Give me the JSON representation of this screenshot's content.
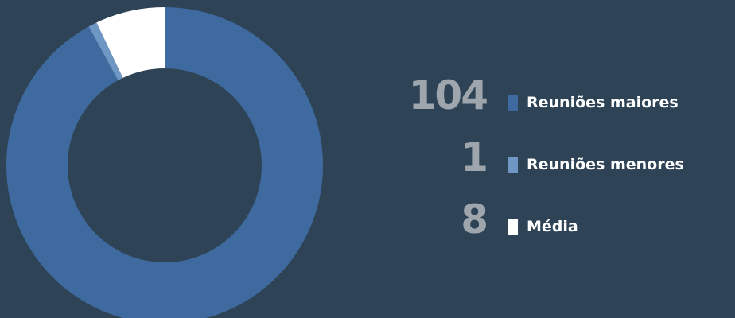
{
  "chart_data": {
    "type": "pie",
    "donut": true,
    "categories": [
      "Reuniões maiores",
      "Reuniões menores",
      "Média"
    ],
    "values": [
      104,
      1,
      8
    ],
    "colors": [
      "#3f6a9f",
      "#6e97c4",
      "#ffffff"
    ],
    "title": "",
    "legend": "right"
  },
  "background_color": "#2e4456"
}
